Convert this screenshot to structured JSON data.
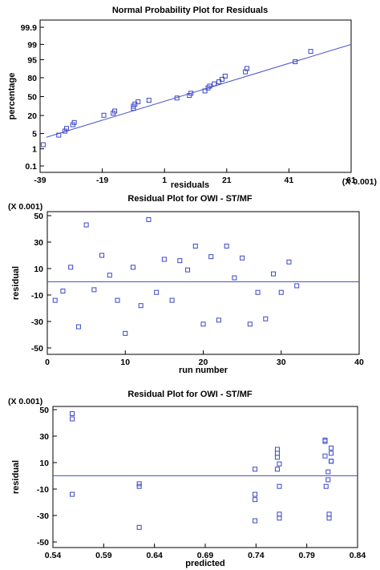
{
  "chart_data": [
    {
      "type": "scatter",
      "title": "Normal Probability Plot for Residuals",
      "xlabel": "residuals",
      "ylabel": "percentage",
      "multiplier": "(X 0.001)",
      "xlim": [
        -39,
        61
      ],
      "xticks": [
        -39,
        -19,
        1,
        21,
        41,
        61
      ],
      "xtick_labels": [
        "-39",
        "-19",
        "1",
        "21",
        "41",
        "61"
      ],
      "yticks": [
        0.1,
        1,
        5,
        20,
        50,
        80,
        95,
        99,
        99.9
      ],
      "ytick_labels": [
        "0.1",
        "1",
        "5",
        "20",
        "50",
        "80",
        "95",
        "99",
        "99.9"
      ],
      "fit_line": {
        "x": [
          -37,
          61
        ],
        "y": [
          3.5,
          99
        ]
      },
      "points": [
        {
          "x": -38,
          "y": 1.6
        },
        {
          "x": -33,
          "y": 4.3
        },
        {
          "x": -31,
          "y": 6.2
        },
        {
          "x": -30.5,
          "y": 7.8
        },
        {
          "x": -28.5,
          "y": 10.5
        },
        {
          "x": -28,
          "y": 12.4
        },
        {
          "x": -18.5,
          "y": 20.3
        },
        {
          "x": -15.5,
          "y": 23
        },
        {
          "x": -15,
          "y": 26
        },
        {
          "x": -9,
          "y": 30
        },
        {
          "x": -9,
          "y": 33.5
        },
        {
          "x": -8.5,
          "y": 37
        },
        {
          "x": -7.5,
          "y": 41
        },
        {
          "x": -4,
          "y": 43.5
        },
        {
          "x": 5,
          "y": 47.5
        },
        {
          "x": 9,
          "y": 52
        },
        {
          "x": 9.5,
          "y": 56
        },
        {
          "x": 14,
          "y": 60
        },
        {
          "x": 15,
          "y": 65
        },
        {
          "x": 15.5,
          "y": 68
        },
        {
          "x": 17,
          "y": 71.5
        },
        {
          "x": 18.5,
          "y": 74.5
        },
        {
          "x": 19.5,
          "y": 78
        },
        {
          "x": 20.5,
          "y": 82
        },
        {
          "x": 27,
          "y": 86.5
        },
        {
          "x": 27.5,
          "y": 89.5
        },
        {
          "x": 43,
          "y": 94
        },
        {
          "x": 48,
          "y": 97.8
        }
      ]
    },
    {
      "type": "scatter",
      "title": "Residual Plot for OWI - ST/MF",
      "xlabel": "run number",
      "ylabel": "residual",
      "multiplier": "(X 0.001)",
      "xlim": [
        0,
        40
      ],
      "ylim": [
        -50,
        50
      ],
      "xticks": [
        0,
        10,
        20,
        30,
        40
      ],
      "xtick_labels": [
        "0",
        "10",
        "20",
        "30",
        "40"
      ],
      "yticks": [
        -50,
        -30,
        -10,
        10,
        30,
        50
      ],
      "ytick_labels": [
        "-50",
        "-30",
        "-10",
        "10",
        "30",
        "50"
      ],
      "zero_line": 0,
      "points": [
        {
          "x": 1,
          "y": -14
        },
        {
          "x": 2,
          "y": -7
        },
        {
          "x": 3,
          "y": 11
        },
        {
          "x": 4,
          "y": -34
        },
        {
          "x": 5,
          "y": 43
        },
        {
          "x": 6,
          "y": -6
        },
        {
          "x": 7,
          "y": 20
        },
        {
          "x": 8,
          "y": 5
        },
        {
          "x": 9,
          "y": -14
        },
        {
          "x": 10,
          "y": -39
        },
        {
          "x": 11,
          "y": 11
        },
        {
          "x": 12,
          "y": -18
        },
        {
          "x": 13,
          "y": 47
        },
        {
          "x": 14,
          "y": -8
        },
        {
          "x": 15,
          "y": 17
        },
        {
          "x": 16,
          "y": -14
        },
        {
          "x": 17,
          "y": 16
        },
        {
          "x": 18,
          "y": 9
        },
        {
          "x": 19,
          "y": 27
        },
        {
          "x": 20,
          "y": -32
        },
        {
          "x": 21,
          "y": 19
        },
        {
          "x": 22,
          "y": -29
        },
        {
          "x": 23,
          "y": 27
        },
        {
          "x": 24,
          "y": 3
        },
        {
          "x": 25,
          "y": 18
        },
        {
          "x": 26,
          "y": -32
        },
        {
          "x": 27,
          "y": -8
        },
        {
          "x": 28,
          "y": -28
        },
        {
          "x": 29,
          "y": 6
        },
        {
          "x": 30,
          "y": -8
        },
        {
          "x": 31,
          "y": 15
        },
        {
          "x": 32,
          "y": -3
        }
      ]
    },
    {
      "type": "scatter",
      "title": "Residual Plot for OWI - ST/MF",
      "xlabel": "predicted",
      "ylabel": "residual",
      "multiplier": "(X 0.001)",
      "xlim": [
        0.54,
        0.84
      ],
      "ylim": [
        -50,
        50
      ],
      "xticks": [
        0.54,
        0.59,
        0.64,
        0.69,
        0.74,
        0.79,
        0.84
      ],
      "xtick_labels": [
        "0.54",
        "0.59",
        "0.64",
        "0.69",
        "0.74",
        "0.79",
        "0.84"
      ],
      "yticks": [
        -50,
        -30,
        -10,
        10,
        30,
        50
      ],
      "ytick_labels": [
        "-50",
        "-30",
        "-10",
        "10",
        "30",
        "50"
      ],
      "zero_line": 0,
      "points": [
        {
          "x": 0.559,
          "y": 47
        },
        {
          "x": 0.559,
          "y": 43
        },
        {
          "x": 0.559,
          "y": -14
        },
        {
          "x": 0.625,
          "y": -6
        },
        {
          "x": 0.625,
          "y": -8
        },
        {
          "x": 0.625,
          "y": -39
        },
        {
          "x": 0.739,
          "y": 5
        },
        {
          "x": 0.739,
          "y": -14
        },
        {
          "x": 0.739,
          "y": -18
        },
        {
          "x": 0.739,
          "y": -34
        },
        {
          "x": 0.761,
          "y": 20
        },
        {
          "x": 0.761,
          "y": 17
        },
        {
          "x": 0.761,
          "y": 14
        },
        {
          "x": 0.761,
          "y": 5
        },
        {
          "x": 0.763,
          "y": 9
        },
        {
          "x": 0.763,
          "y": -8
        },
        {
          "x": 0.763,
          "y": -29
        },
        {
          "x": 0.763,
          "y": -32
        },
        {
          "x": 0.808,
          "y": 27
        },
        {
          "x": 0.808,
          "y": 26
        },
        {
          "x": 0.808,
          "y": 15
        },
        {
          "x": 0.809,
          "y": -8
        },
        {
          "x": 0.811,
          "y": -3
        },
        {
          "x": 0.811,
          "y": 3
        },
        {
          "x": 0.812,
          "y": -29
        },
        {
          "x": 0.812,
          "y": -32
        },
        {
          "x": 0.814,
          "y": 21
        },
        {
          "x": 0.814,
          "y": 17
        },
        {
          "x": 0.814,
          "y": 11
        },
        {
          "x": 0.814,
          "y": 11
        }
      ]
    }
  ]
}
